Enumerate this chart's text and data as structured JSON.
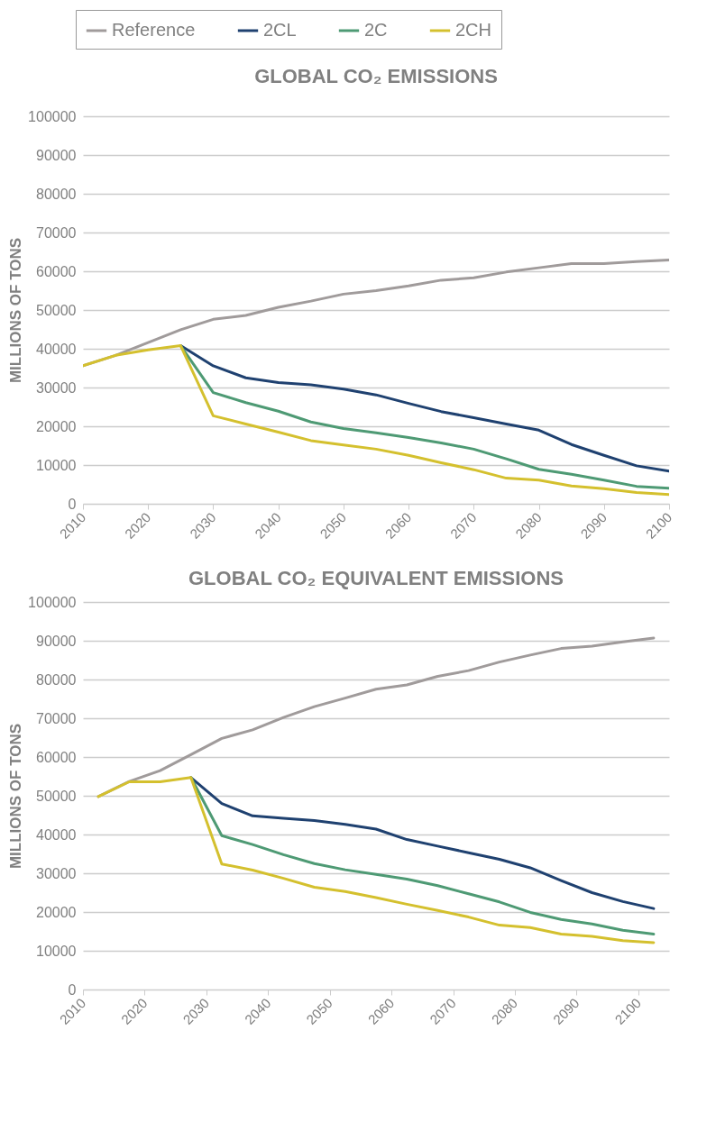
{
  "chart_data": [
    {
      "type": "line",
      "title": "GLOBAL CO₂ EMISSIONS",
      "ylabel": "MILLIONS OF TONS",
      "x": [
        2010,
        2015,
        2020,
        2025,
        2030,
        2035,
        2040,
        2045,
        2050,
        2055,
        2060,
        2065,
        2070,
        2075,
        2080,
        2085,
        2090,
        2095,
        2100
      ],
      "xlim": [
        2010,
        2100
      ],
      "xticks": [
        2010,
        2020,
        2030,
        2040,
        2050,
        2060,
        2070,
        2080,
        2090,
        2100
      ],
      "ylim": [
        0,
        100000
      ],
      "yticks": [
        0,
        10000,
        20000,
        30000,
        40000,
        50000,
        60000,
        70000,
        80000,
        90000,
        100000
      ],
      "grid": "y",
      "legend": "top",
      "line_style": "solid",
      "series": [
        {
          "name": "Reference",
          "color": "#a09b9b",
          "values": [
            35600,
            38300,
            41600,
            44900,
            47600,
            48600,
            50700,
            52300,
            54100,
            55000,
            56200,
            57700,
            58300,
            59800,
            60900,
            62000,
            62000,
            62500,
            62900
          ]
        },
        {
          "name": "2CL",
          "color": "#1f4170",
          "values": [
            null,
            null,
            null,
            40800,
            35600,
            32500,
            31300,
            30700,
            29600,
            28100,
            25900,
            23800,
            22200,
            20600,
            19000,
            15300,
            12500,
            9800,
            8400
          ]
        },
        {
          "name": "2C",
          "color": "#4e9a74",
          "values": [
            null,
            null,
            null,
            40800,
            28700,
            26100,
            23900,
            21100,
            19400,
            18300,
            17100,
            15700,
            14100,
            11600,
            8900,
            7600,
            6100,
            4500,
            4000
          ]
        },
        {
          "name": "2CH",
          "color": "#d4c02e",
          "values": [
            35600,
            38300,
            39700,
            40800,
            22700,
            20600,
            18500,
            16300,
            15200,
            14100,
            12500,
            10600,
            8800,
            6600,
            6100,
            4600,
            3900,
            2900,
            2400
          ]
        }
      ]
    },
    {
      "type": "line",
      "title": "GLOBAL CO₂ EQUIVALENT EMISSIONS",
      "ylabel": "MILLIONS OF TONS",
      "x": [
        2012.5,
        2017.5,
        2022.5,
        2027.5,
        2032.5,
        2037.5,
        2042.5,
        2047.5,
        2052.5,
        2057.5,
        2062.5,
        2067.5,
        2072.5,
        2077.5,
        2082.5,
        2087.5,
        2092.5,
        2097.5,
        2102.5
      ],
      "xlim": [
        2010,
        2105
      ],
      "xticks": [
        2010,
        2020,
        2030,
        2040,
        2050,
        2060,
        2070,
        2080,
        2090,
        2100
      ],
      "ylim": [
        0,
        100000
      ],
      "yticks": [
        0,
        10000,
        20000,
        30000,
        40000,
        50000,
        60000,
        70000,
        80000,
        90000,
        100000
      ],
      "grid": "y",
      "line_style": "solid",
      "series": [
        {
          "color": "#a09b9b",
          "values": [
            49800,
            53700,
            56500,
            60600,
            64800,
            67000,
            70200,
            73000,
            75200,
            77500,
            78600,
            80800,
            82300,
            84500,
            86300,
            88000,
            88600,
            89700,
            90700
          ]
        },
        {
          "color": "#1f4170",
          "values": [
            null,
            null,
            null,
            54700,
            48000,
            44800,
            44200,
            43600,
            42600,
            41400,
            38700,
            37000,
            35300,
            33600,
            31400,
            28100,
            25000,
            22700,
            20900
          ]
        },
        {
          "color": "#4e9a74",
          "values": [
            null,
            null,
            null,
            54700,
            39700,
            37400,
            34800,
            32500,
            30900,
            29700,
            28500,
            26800,
            24700,
            22600,
            19900,
            18100,
            16900,
            15300,
            14300
          ]
        },
        {
          "color": "#d4c02e",
          "values": [
            49800,
            53600,
            53600,
            54700,
            32400,
            30800,
            28700,
            26400,
            25300,
            23700,
            22000,
            20400,
            18700,
            16600,
            16000,
            14300,
            13700,
            12600,
            12100
          ]
        }
      ]
    }
  ]
}
